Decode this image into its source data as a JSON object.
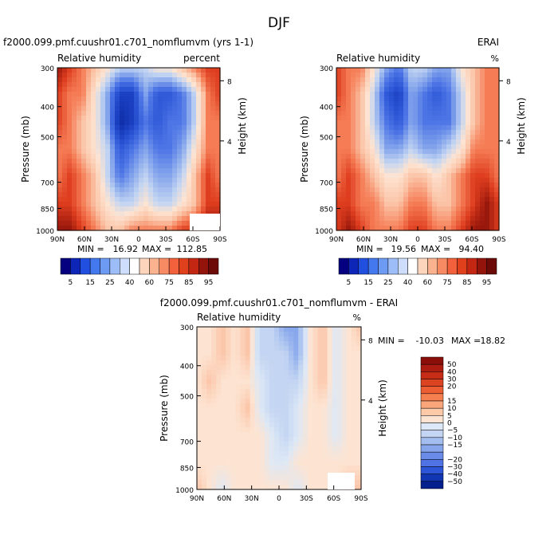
{
  "page_title": "DJF",
  "colors": {
    "positive_palette": [
      "#fce1cf",
      "#fbc4a7",
      "#f8a27e",
      "#f57c55",
      "#ef5a32",
      "#de3d1e",
      "#c12a12",
      "#96160b"
    ],
    "negative_palette": [
      "#dde8f6",
      "#c3d5f2",
      "#a5bfee",
      "#86a6ec",
      "#6a8ee9",
      "#4d75e6",
      "#2e58d7",
      "#1a3fc0",
      "#0d2ba5"
    ]
  },
  "chart_data": [
    {
      "id": "model",
      "type": "heatmap",
      "title_left": "f2000.099.pmf.cuushr01.c701_nomflumvm (yrs 1-1)",
      "title_right": "",
      "subtitle_left": "Relative humidity",
      "subtitle_right": "percent",
      "ylabel": "Pressure (mb)",
      "ylabel_right": "Height (km)",
      "x_ticks": [
        "90N",
        "60N",
        "30N",
        "0",
        "30S",
        "60S",
        "90S"
      ],
      "y_ticks": [
        "300",
        "400",
        "500",
        "700",
        "850",
        "1000"
      ],
      "y_ticks_right": [
        "8",
        "4"
      ],
      "stats": {
        "min_label": "MIN =",
        "min": "16.92",
        "max_label": "MAX =",
        "max": "112.85"
      },
      "levels": [
        "5",
        "15",
        "25",
        "40",
        "60",
        "75",
        "85",
        "95"
      ],
      "colorbar_colors": [
        "#040080",
        "#0e26b8",
        "#2150e0",
        "#4478ee",
        "#6d9bf3",
        "#9dbdf8",
        "#cdddfb",
        "#ffffff",
        "#fdd5bd",
        "#fbb28f",
        "#f88a63",
        "#f2613b",
        "#e1401d",
        "#c32713",
        "#93140a",
        "#6b0a06"
      ],
      "z": [
        [
          10,
          9,
          8,
          7,
          6,
          5,
          5,
          5,
          6,
          6,
          7,
          8,
          9,
          9
        ],
        [
          9,
          8,
          8,
          6,
          4,
          1,
          1,
          4,
          2,
          2,
          3,
          5,
          8,
          9
        ],
        [
          9,
          8,
          7,
          6,
          4,
          0,
          1,
          3,
          2,
          3,
          3,
          5,
          8,
          8
        ],
        [
          8,
          8,
          7,
          6,
          5,
          2,
          3,
          4,
          3,
          3,
          4,
          6,
          8,
          8
        ],
        [
          8,
          9,
          8,
          7,
          5,
          3,
          4,
          5,
          4,
          4,
          5,
          7,
          9,
          8
        ],
        [
          9,
          9,
          8,
          7,
          6,
          5,
          5,
          6,
          5,
          5,
          6,
          7,
          9,
          9
        ],
        [
          10,
          10,
          9,
          8,
          7,
          7,
          8,
          8,
          8,
          8,
          9,
          9,
          10,
          10
        ]
      ]
    },
    {
      "id": "obs",
      "type": "heatmap",
      "title_left": "",
      "title_right": "ERAI",
      "subtitle_left": "Relative humidity",
      "subtitle_right": "%",
      "ylabel": "Pressure (mb)",
      "ylabel_right": "Height (km)",
      "x_ticks": [
        "90N",
        "60N",
        "30N",
        "0",
        "30S",
        "60S",
        "90S"
      ],
      "y_ticks": [
        "300",
        "400",
        "500",
        "700",
        "850",
        "1000"
      ],
      "y_ticks_right": [
        "8",
        "4"
      ],
      "stats": {
        "min_label": "MIN =",
        "min": "19.56",
        "max_label": "MAX =",
        "max": "94.40"
      },
      "levels": [
        "5",
        "15",
        "25",
        "40",
        "60",
        "75",
        "85",
        "95"
      ],
      "colorbar_colors": [
        "#040080",
        "#0e26b8",
        "#2150e0",
        "#4478ee",
        "#6d9bf3",
        "#9dbdf8",
        "#cdddfb",
        "#ffffff",
        "#fdd5bd",
        "#fbb28f",
        "#f88a63",
        "#f2613b",
        "#e1401d",
        "#c32713",
        "#93140a",
        "#6b0a06"
      ],
      "z": [
        [
          9,
          8,
          8,
          6,
          4,
          3,
          5,
          5,
          4,
          4,
          6,
          7,
          8,
          8
        ],
        [
          9,
          8,
          7,
          5,
          2,
          1,
          4,
          3,
          2,
          3,
          5,
          7,
          8,
          8
        ],
        [
          8,
          8,
          7,
          5,
          3,
          2,
          4,
          3,
          3,
          3,
          5,
          7,
          8,
          8
        ],
        [
          8,
          8,
          7,
          6,
          4,
          4,
          5,
          4,
          4,
          5,
          6,
          8,
          8,
          8
        ],
        [
          8,
          9,
          8,
          7,
          6,
          6,
          7,
          7,
          6,
          7,
          8,
          9,
          9,
          8
        ],
        [
          9,
          9,
          8,
          8,
          7,
          7,
          8,
          8,
          7,
          7,
          8,
          9,
          10,
          9
        ],
        [
          9,
          10,
          9,
          8,
          8,
          8,
          9,
          9,
          8,
          8,
          9,
          10,
          10,
          9
        ]
      ]
    },
    {
      "id": "diff",
      "type": "heatmap",
      "title_center": "f2000.099.pmf.cuushr01.c701_nomflumvm - ERAI",
      "subtitle_left": "Relative humidity",
      "subtitle_right": "%",
      "ylabel": "Pressure (mb)",
      "ylabel_right": "Height (km)",
      "x_ticks": [
        "90N",
        "60N",
        "30N",
        "0",
        "30S",
        "60S",
        "90S"
      ],
      "y_ticks": [
        "300",
        "400",
        "500",
        "700",
        "850",
        "1000"
      ],
      "y_ticks_right": [
        "8",
        "4"
      ],
      "stats": {
        "min_label": "MIN =",
        "min": "-10.03",
        "max_label": "MAX =",
        "max": "18.82"
      },
      "levels": [
        "50",
        "40",
        "30",
        "20",
        "15",
        "10",
        "5",
        "0",
        "−5",
        "−10",
        "−15",
        "−20",
        "−30",
        "−40",
        "−50"
      ],
      "colorbar_colors": [
        "#8b0e0a",
        "#ac1c10",
        "#c72c17",
        "#dc4321",
        "#ec5d33",
        "#f57f4e",
        "#faa67a",
        "#fccaa9",
        "#fde4d2",
        "#dce8f7",
        "#c3d5f3",
        "#a3bdee",
        "#86a5eb",
        "#6a8be8",
        "#4f72e4",
        "#2d55d8",
        "#1036b3",
        "#041f8e"
      ],
      "z": [
        [
          5,
          5,
          6,
          5,
          6,
          3,
          3,
          2,
          2,
          5,
          6,
          4,
          5,
          6
        ],
        [
          5,
          5,
          6,
          5,
          6,
          3,
          3,
          3,
          2,
          5,
          6,
          4,
          5,
          5
        ],
        [
          5,
          6,
          5,
          5,
          5,
          4,
          3,
          3,
          3,
          5,
          6,
          4,
          5,
          5
        ],
        [
          5,
          5,
          5,
          5,
          6,
          4,
          3,
          3,
          4,
          5,
          5,
          4,
          5,
          5
        ],
        [
          5,
          5,
          5,
          5,
          5,
          5,
          4,
          3,
          4,
          5,
          5,
          4,
          5,
          5
        ],
        [
          5,
          5,
          5,
          5,
          5,
          5,
          4,
          4,
          5,
          5,
          5,
          5,
          5,
          5
        ],
        [
          6,
          5,
          4,
          5,
          5,
          5,
          5,
          5,
          4,
          5,
          5,
          5,
          6,
          6
        ]
      ]
    }
  ]
}
